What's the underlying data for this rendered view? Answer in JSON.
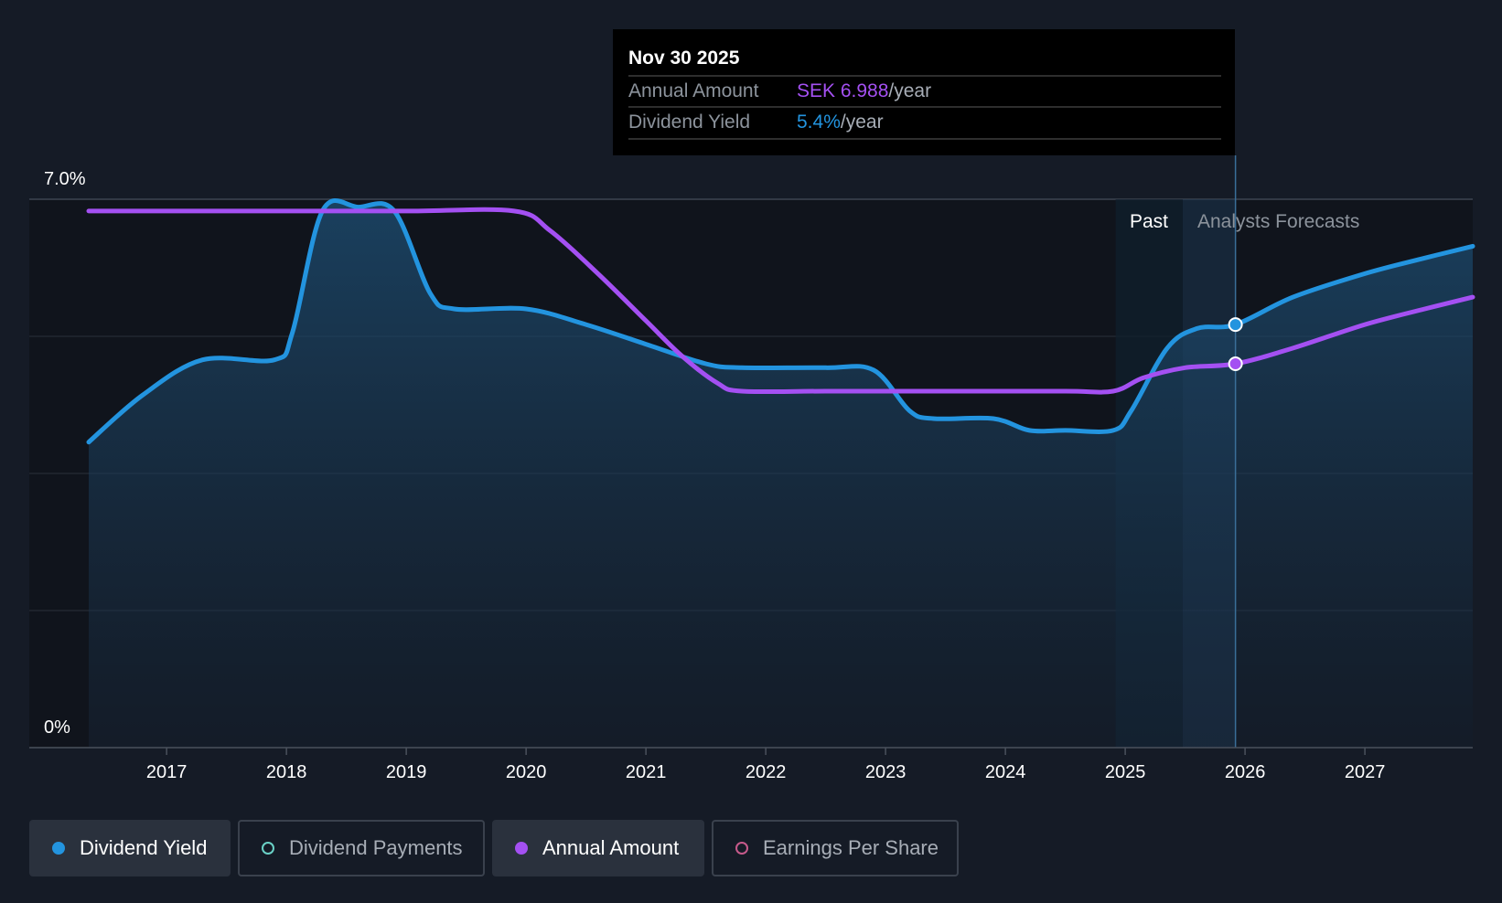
{
  "chart_data": {
    "type": "line",
    "title": "",
    "xlabel": "",
    "ylabel": "",
    "x_ticks": [
      "2017",
      "2018",
      "2019",
      "2020",
      "2021",
      "2022",
      "2023",
      "2024",
      "2025",
      "2026",
      "2027"
    ],
    "y_tick_labels": [
      "7.0%",
      "0%"
    ],
    "ylim": [
      0,
      7.0
    ],
    "xlim": [
      2016.35,
      2027.9
    ],
    "grid": true,
    "past_label": "Past",
    "forecast_label": "Analysts Forecasts",
    "series": [
      {
        "name": "Dividend Yield",
        "color": "#2394df",
        "area": true,
        "points": [
          [
            2016.35,
            3.9
          ],
          [
            2016.8,
            4.5
          ],
          [
            2017.3,
            4.95
          ],
          [
            2017.9,
            4.95
          ],
          [
            2018.05,
            5.3
          ],
          [
            2018.3,
            6.85
          ],
          [
            2018.6,
            6.9
          ],
          [
            2018.9,
            6.85
          ],
          [
            2019.2,
            5.8
          ],
          [
            2019.4,
            5.6
          ],
          [
            2020.0,
            5.6
          ],
          [
            2020.5,
            5.4
          ],
          [
            2021.0,
            5.15
          ],
          [
            2021.5,
            4.9
          ],
          [
            2021.8,
            4.85
          ],
          [
            2022.5,
            4.85
          ],
          [
            2022.9,
            4.82
          ],
          [
            2023.2,
            4.3
          ],
          [
            2023.4,
            4.2
          ],
          [
            2023.9,
            4.2
          ],
          [
            2024.2,
            4.05
          ],
          [
            2024.5,
            4.05
          ],
          [
            2024.9,
            4.05
          ],
          [
            2025.05,
            4.3
          ],
          [
            2025.35,
            5.1
          ],
          [
            2025.6,
            5.35
          ],
          [
            2025.92,
            5.4
          ],
          [
            2026.4,
            5.75
          ],
          [
            2027.0,
            6.05
          ],
          [
            2027.5,
            6.25
          ],
          [
            2027.9,
            6.4
          ]
        ]
      },
      {
        "name": "Annual Amount",
        "color": "#a450f2",
        "area": false,
        "points": [
          [
            2016.35,
            6.85
          ],
          [
            2017.0,
            6.85
          ],
          [
            2018.0,
            6.85
          ],
          [
            2019.0,
            6.85
          ],
          [
            2019.9,
            6.85
          ],
          [
            2020.2,
            6.6
          ],
          [
            2020.6,
            6.05
          ],
          [
            2021.0,
            5.45
          ],
          [
            2021.3,
            5.0
          ],
          [
            2021.6,
            4.65
          ],
          [
            2021.8,
            4.55
          ],
          [
            2022.5,
            4.55
          ],
          [
            2023.5,
            4.55
          ],
          [
            2024.5,
            4.55
          ],
          [
            2024.9,
            4.55
          ],
          [
            2025.15,
            4.72
          ],
          [
            2025.5,
            4.85
          ],
          [
            2025.92,
            4.9
          ],
          [
            2026.4,
            5.1
          ],
          [
            2027.0,
            5.4
          ],
          [
            2027.5,
            5.6
          ],
          [
            2027.9,
            5.75
          ]
        ]
      }
    ],
    "highlight": {
      "x": 2025.92,
      "date": "Nov 30 2025",
      "annual_amount": 6.988,
      "dividend_yield": 5.4
    }
  },
  "tooltip": {
    "date": "Nov 30 2025",
    "rows": [
      {
        "label": "Annual Amount",
        "value": "SEK 6.988",
        "suffix": "/year",
        "color": "#a450f2"
      },
      {
        "label": "Dividend Yield",
        "value": "5.4%",
        "suffix": "/year",
        "color": "#2394df"
      }
    ]
  },
  "legend": [
    {
      "label": "Dividend Yield",
      "active": true,
      "marker": "filled",
      "color": "#2394df"
    },
    {
      "label": "Dividend Payments",
      "active": false,
      "marker": "hollow",
      "color": "#6ad1c6"
    },
    {
      "label": "Annual Amount",
      "active": true,
      "marker": "filled",
      "color": "#a450f2"
    },
    {
      "label": "Earnings Per Share",
      "active": false,
      "marker": "hollow",
      "color": "#c65a8b"
    }
  ]
}
